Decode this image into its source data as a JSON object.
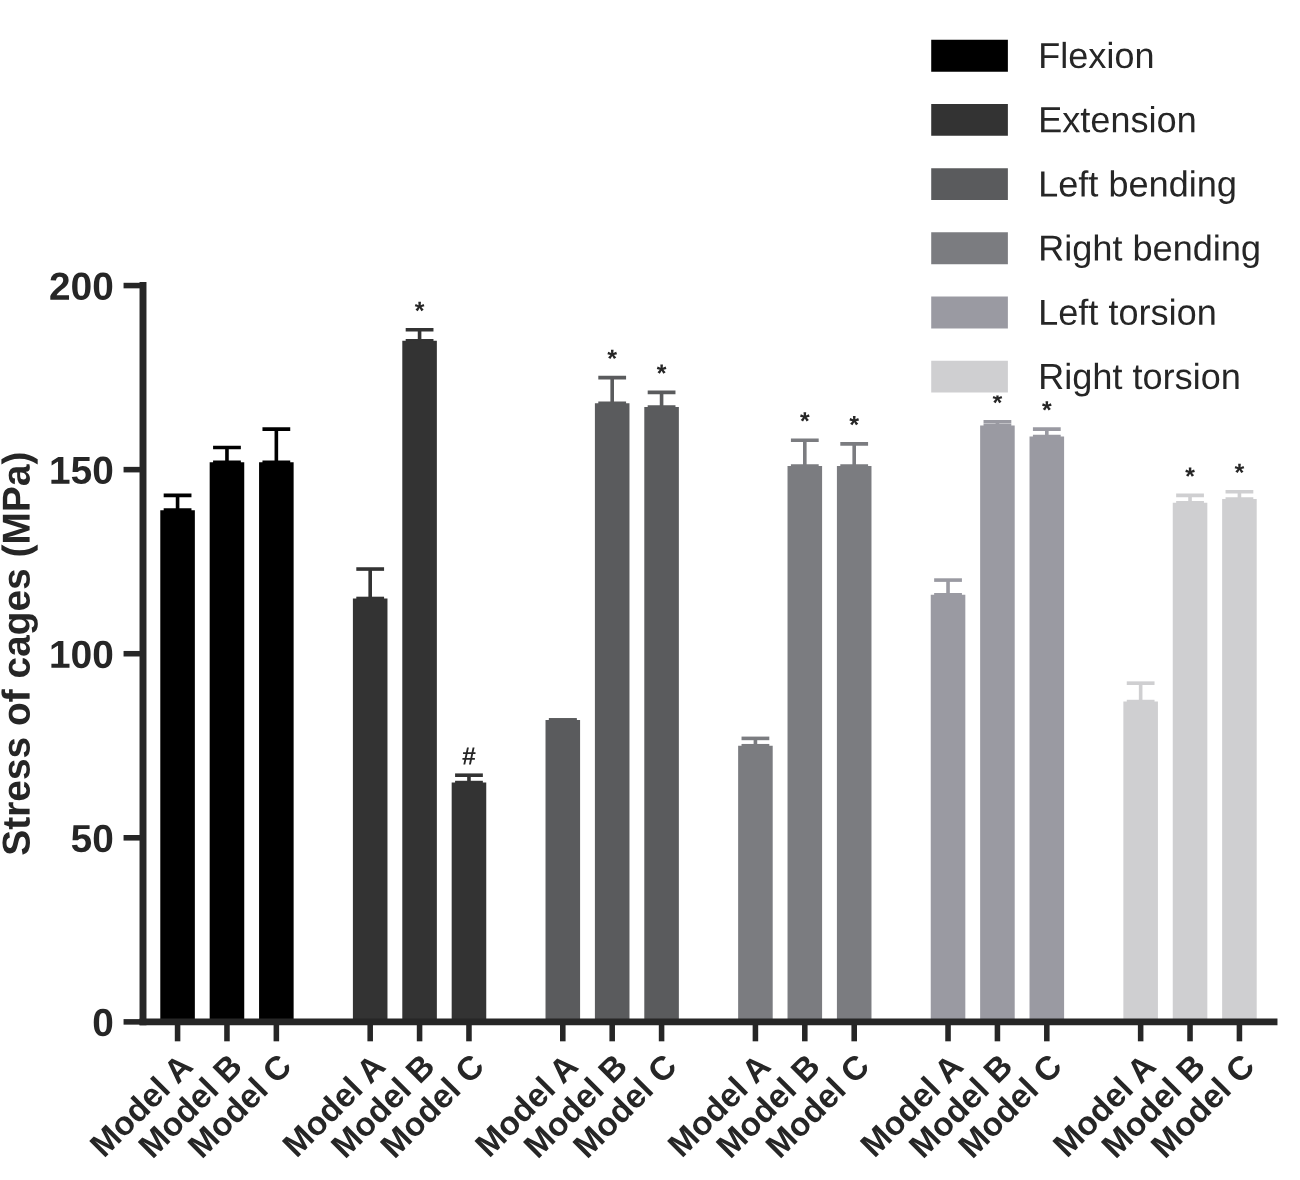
{
  "chart_data": {
    "type": "bar",
    "ylabel": "Stress of cages (MPa)",
    "ylim": [
      0,
      200
    ],
    "yticks": [
      0,
      50,
      100,
      150,
      200
    ],
    "grid": false,
    "legend": "top right",
    "categories": [
      "Model A",
      "Model B",
      "Model C",
      "Model A",
      "Model B",
      "Model C",
      "Model A",
      "Model B",
      "Model C",
      "Model A",
      "Model B",
      "Model C",
      "Model A",
      "Model B",
      "Model C",
      "Model A",
      "Model B",
      "Model C"
    ],
    "series": [
      {
        "name": "Flexion",
        "color": "#000000",
        "values": [
          139,
          152,
          152,
          null,
          null,
          null,
          null,
          null,
          null,
          null,
          null,
          null,
          null,
          null,
          null,
          null,
          null,
          null
        ],
        "errors": [
          [
            139,
            143
          ],
          [
            152,
            156
          ],
          [
            152,
            161
          ],
          null,
          null,
          null,
          null,
          null,
          null,
          null,
          null,
          null,
          null,
          null,
          null,
          null,
          null,
          null
        ]
      },
      {
        "name": "Extension",
        "color": "#333333",
        "values": [
          null,
          null,
          null,
          115,
          185,
          65,
          null,
          null,
          null,
          null,
          null,
          null,
          null,
          null,
          null,
          null,
          null,
          null
        ],
        "errors": [
          null,
          null,
          null,
          [
            115,
            123
          ],
          [
            185,
            188
          ],
          [
            65,
            67
          ],
          null,
          null,
          null,
          null,
          null,
          null,
          null,
          null,
          null,
          null,
          null,
          null
        ],
        "value_labels": [
          null,
          null,
          null,
          null,
          "*",
          "#",
          null,
          null,
          null,
          null,
          null,
          null,
          null,
          null,
          null,
          null,
          null,
          null
        ]
      },
      {
        "name": "Left bending",
        "color": "#5a5b5d",
        "values": [
          null,
          null,
          null,
          null,
          null,
          null,
          82,
          168,
          167,
          null,
          null,
          null,
          null,
          null,
          null,
          null,
          null,
          null
        ],
        "errors": [
          null,
          null,
          null,
          null,
          null,
          null,
          null,
          [
            168,
            175
          ],
          [
            167,
            171
          ],
          null,
          null,
          null,
          null,
          null,
          null,
          null,
          null,
          null
        ],
        "value_labels": [
          null,
          null,
          null,
          null,
          null,
          null,
          null,
          "*",
          "*",
          null,
          null,
          null,
          null,
          null,
          null,
          null,
          null,
          null
        ]
      },
      {
        "name": "Right bending",
        "color": "#7b7c80",
        "values": [
          null,
          null,
          null,
          null,
          null,
          null,
          null,
          null,
          null,
          75,
          151,
          151,
          null,
          null,
          null,
          null,
          null,
          null
        ],
        "errors": [
          null,
          null,
          null,
          null,
          null,
          null,
          null,
          null,
          null,
          [
            75,
            77
          ],
          [
            151,
            158
          ],
          [
            151,
            157
          ],
          null,
          null,
          null,
          null,
          null,
          null
        ],
        "value_labels": [
          null,
          null,
          null,
          null,
          null,
          null,
          null,
          null,
          null,
          null,
          "*",
          "*",
          null,
          null,
          null,
          null,
          null,
          null
        ]
      },
      {
        "name": "Left torsion",
        "color": "#9a9aa2",
        "values": [
          null,
          null,
          null,
          null,
          null,
          null,
          null,
          null,
          null,
          null,
          null,
          null,
          116,
          162,
          159,
          null,
          null,
          null
        ],
        "errors": [
          null,
          null,
          null,
          null,
          null,
          null,
          null,
          null,
          null,
          null,
          null,
          null,
          [
            116,
            120
          ],
          [
            162,
            163
          ],
          [
            159,
            161
          ],
          null,
          null,
          null
        ],
        "value_labels": [
          null,
          null,
          null,
          null,
          null,
          null,
          null,
          null,
          null,
          null,
          null,
          null,
          null,
          "*",
          "*",
          null,
          null,
          null
        ]
      },
      {
        "name": "Right torsion",
        "color": "#cfcfd1",
        "values": [
          null,
          null,
          null,
          null,
          null,
          null,
          null,
          null,
          null,
          null,
          null,
          null,
          null,
          null,
          null,
          87,
          141,
          142
        ],
        "errors": [
          null,
          null,
          null,
          null,
          null,
          null,
          null,
          null,
          null,
          null,
          null,
          null,
          null,
          null,
          null,
          [
            87,
            92
          ],
          [
            141,
            143
          ],
          [
            142,
            144
          ]
        ],
        "value_labels": [
          null,
          null,
          null,
          null,
          null,
          null,
          null,
          null,
          null,
          null,
          null,
          null,
          null,
          null,
          null,
          null,
          "*",
          "*"
        ]
      }
    ]
  }
}
